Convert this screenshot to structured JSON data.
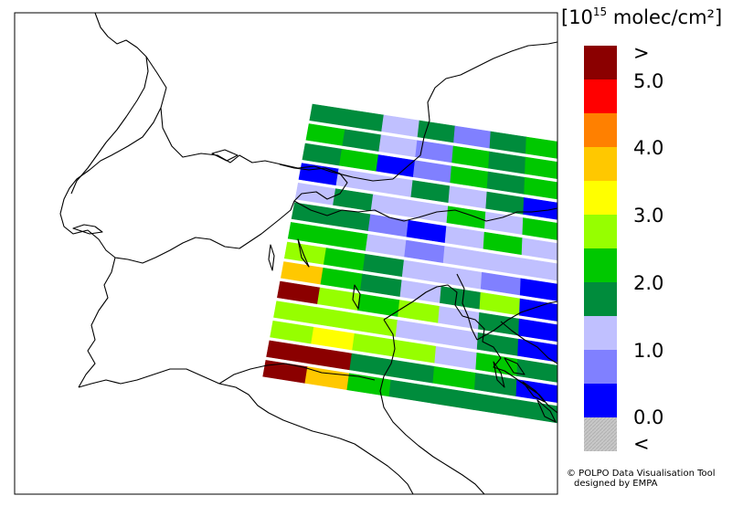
{
  "colorbar": {
    "unit_prefix": "[10",
    "unit_exponent": "15",
    "unit_suffix": " molec/cm²]",
    "colors": [
      "#c8c8c8",
      "#0000ff",
      "#8080ff",
      "#c0c0ff",
      "#008c3c",
      "#00c800",
      "#96ff00",
      "#ffff00",
      "#ffc800",
      "#ff8000",
      "#ff0000",
      "#8b0000"
    ],
    "tick_labels": [
      "<",
      "0.0",
      "1.0",
      "2.0",
      "3.0",
      "4.0",
      "5.0",
      ">"
    ]
  },
  "credit": {
    "line1": "© POLPO Data Visualisation Tool",
    "line2": "designed by EMPA"
  },
  "colors": {
    "coastline": "#000000",
    "map_border": "#000000",
    "pixel_gap": "#ffffff"
  },
  "data_grid": {
    "rows": [
      [
        "darkgreen",
        "darkgreen",
        "lightblue",
        "darkgreen",
        "medblue",
        "darkgreen",
        "green"
      ],
      [
        "green",
        "darkgreen",
        "lightblue",
        "medblue",
        "green",
        "darkgreen",
        "green"
      ],
      [
        "darkgreen",
        "green",
        "blue",
        "medblue",
        "green",
        "darkgreen",
        "green"
      ],
      [
        "blue",
        "lightblue",
        "lightblue",
        "darkgreen",
        "lightblue",
        "darkgreen",
        "blue"
      ],
      [
        "lightblue",
        "darkgreen",
        "lightblue",
        "lightblue",
        "green",
        "lightblue",
        "green"
      ],
      [
        "darkgreen",
        "darkgreen",
        "medblue",
        "blue",
        "lightblue",
        "green",
        "lightblue"
      ],
      [
        "green",
        "green",
        "lightblue",
        "medblue",
        "lightblue",
        "lightblue",
        "lightblue"
      ],
      [
        "lime",
        "green",
        "darkgreen",
        "lightblue",
        "lightblue",
        "medblue",
        "blue"
      ],
      [
        "orange",
        "green",
        "darkgreen",
        "lightblue",
        "darkgreen",
        "lime",
        "blue"
      ],
      [
        "darkred",
        "lime",
        "green",
        "lime",
        "lightblue",
        "darkgreen",
        "blue"
      ],
      [
        "lime",
        "lime",
        "lime",
        "lightblue",
        "lightblue",
        "darkgreen",
        "blue"
      ],
      [
        "lime",
        "yellow",
        "lime",
        "lime",
        "lightblue",
        "green",
        "darkgreen"
      ],
      [
        "darkred",
        "darkred",
        "darkgreen",
        "darkgreen",
        "green",
        "darkgreen",
        "blue"
      ],
      [
        "darkred",
        "orange",
        "green",
        "darkgreen",
        "darkgreen",
        "darkgreen",
        "darkgreen"
      ]
    ],
    "palette": {
      "blue": "#0000ff",
      "medblue": "#8080ff",
      "lightblue": "#c0c0ff",
      "darkgreen": "#008c3c",
      "green": "#00c800",
      "lime": "#96ff00",
      "yellow": "#ffff00",
      "orange": "#ffc800",
      "darkorange": "#ff8000",
      "red": "#ff0000",
      "darkred": "#8b0000"
    }
  }
}
